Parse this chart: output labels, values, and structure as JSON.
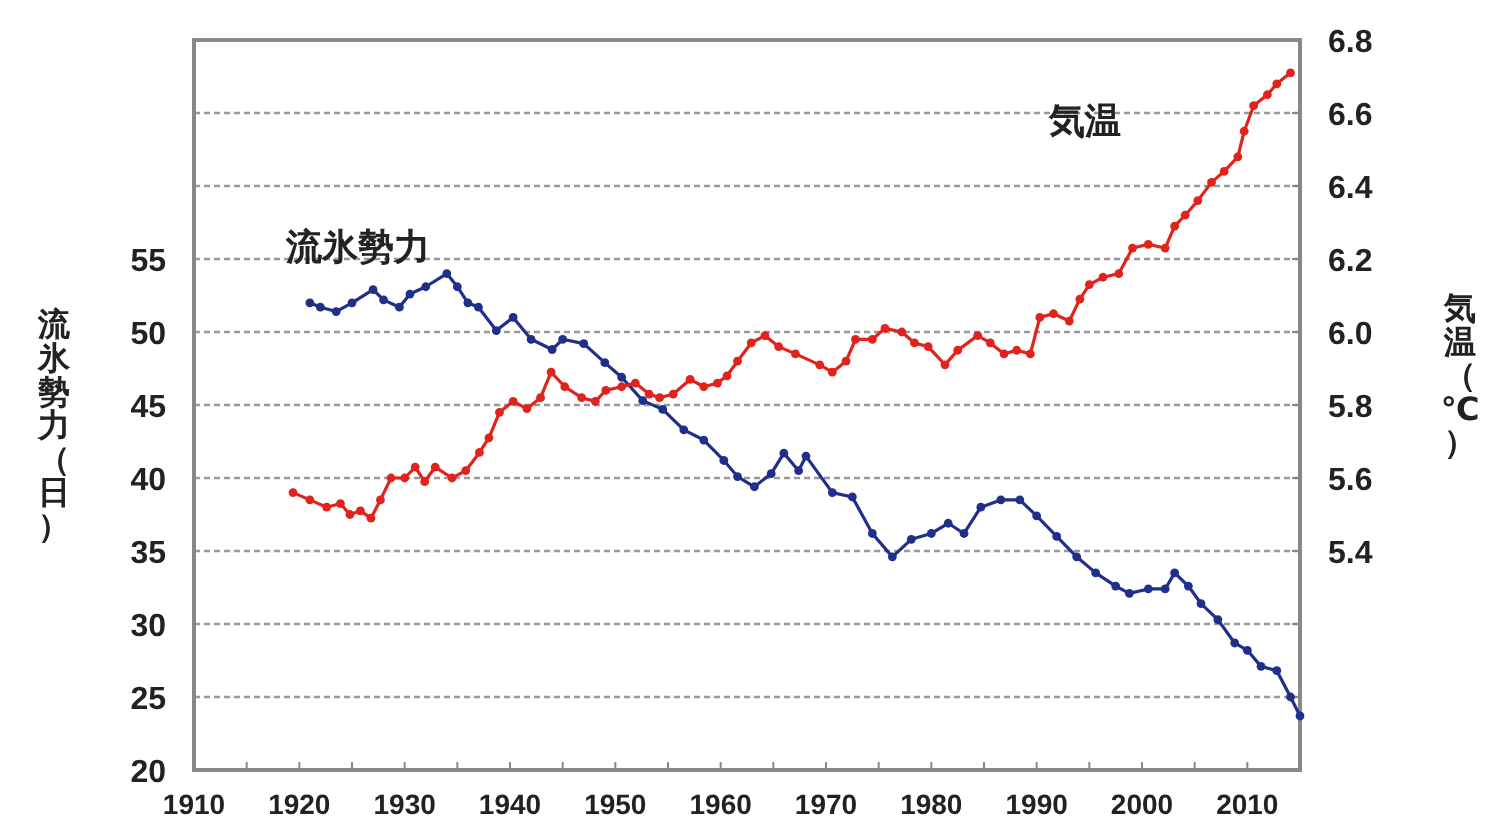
{
  "chart_data": {
    "type": "line",
    "ylabel": "流氷勢力（日）",
    "y2label": "気温（℃）",
    "xlim": [
      1910,
      2015
    ],
    "xticks": [
      1910,
      {
        "value": 1915,
        "label": null
      },
      1920,
      {
        "value": 1925,
        "label": null
      },
      1930,
      {
        "value": 1935,
        "label": null
      },
      1940,
      {
        "value": 1945,
        "label": null
      },
      1950,
      {
        "value": 1955,
        "label": null
      },
      1960,
      {
        "value": 1965,
        "label": null
      },
      1970,
      {
        "value": 1975,
        "label": null
      },
      1980,
      {
        "value": 1985,
        "label": null
      },
      1990,
      {
        "value": 1995,
        "label": null
      },
      2000,
      {
        "value": 2005,
        "label": null
      },
      2010
    ],
    "ylim": [
      20,
      70
    ],
    "yticks": [
      20,
      25,
      30,
      35,
      40,
      45,
      50,
      55,
      {
        "value": 60,
        "label": null
      },
      {
        "value": 65,
        "label": null
      },
      {
        "value": 70,
        "label": null
      }
    ],
    "y2lim": [
      4.8,
      6.8
    ],
    "y2ticks": [
      {
        "value": 4.8,
        "label": null
      },
      {
        "value": 5.0,
        "label": null
      },
      {
        "value": 5.2,
        "label": null
      },
      {
        "value": 5.4,
        "label": "5.4"
      },
      {
        "value": 5.6,
        "label": "5.6"
      },
      {
        "value": 5.8,
        "label": "5.8"
      },
      {
        "value": 6.0,
        "label": "6.0"
      },
      {
        "value": 6.2,
        "label": "6.2"
      },
      {
        "value": 6.4,
        "label": "6.4"
      },
      {
        "value": 6.6,
        "label": "6.6"
      },
      {
        "value": 6.8,
        "label": "6.8"
      }
    ],
    "grid": "y",
    "marker": "circle",
    "line_style": "solid",
    "series": [
      {
        "name": "流氷勢力",
        "color": "#1f2f8a",
        "x": [
          1921,
          1922,
          1923.5,
          1925,
          1927,
          1928,
          1929.5,
          1930.5,
          1932,
          1934,
          1935,
          1936,
          1937,
          1938.7,
          1940.3,
          1942,
          1944,
          1945,
          1947,
          1949,
          1950.6,
          1952.6,
          1954.5,
          1956.5,
          1958.4,
          1960.3,
          1961.6,
          1963.2,
          1964.8,
          1966,
          1967.4,
          1968.1,
          1970.6,
          1972.5,
          1974.4,
          1976.3,
          1978.1,
          1980,
          1981.6,
          1983.1,
          1984.7,
          1986.6,
          1988.4,
          1990,
          1991.9,
          1993.8,
          1995.6,
          1997.5,
          1998.8,
          2000.6,
          2002.2,
          2003.1,
          2004.4,
          2005.6,
          2007.2,
          2008.8,
          2010,
          2011.3,
          2012.8,
          2014.1,
          2015
        ],
        "values": [
          52.0,
          51.7,
          51.4,
          52.0,
          52.9,
          52.2,
          51.7,
          52.6,
          53.1,
          54.0,
          53.1,
          52.0,
          51.7,
          50.1,
          51.0,
          49.5,
          48.8,
          49.5,
          49.2,
          47.9,
          46.9,
          45.3,
          44.7,
          43.3,
          42.6,
          41.2,
          40.1,
          39.4,
          40.3,
          41.7,
          40.5,
          41.5,
          39.0,
          38.7,
          36.2,
          34.6,
          35.8,
          36.2,
          36.9,
          36.2,
          38.0,
          38.5,
          38.5,
          37.4,
          36.0,
          34.6,
          33.5,
          32.6,
          32.1,
          32.4,
          32.4,
          33.5,
          32.6,
          31.4,
          30.3,
          28.7,
          28.2,
          27.1,
          26.8,
          25.0,
          23.7
        ]
      },
      {
        "name": "気温",
        "color": "#e0231c",
        "axis": "y2",
        "x": [
          1919.4,
          1921,
          1922.6,
          1923.9,
          1924.8,
          1925.8,
          1926.8,
          1927.7,
          1928.7,
          1930,
          1931,
          1931.9,
          1932.9,
          1934.5,
          1935.8,
          1937.1,
          1938,
          1939,
          1940.3,
          1941.6,
          1942.9,
          1943.9,
          1945.2,
          1946.8,
          1948.1,
          1949.1,
          1950.6,
          1951.9,
          1953.2,
          1954.2,
          1955.5,
          1957.1,
          1958.4,
          1959.7,
          1960.6,
          1961.6,
          1962.9,
          1964.2,
          1965.5,
          1967.1,
          1969.4,
          1970.6,
          1971.9,
          1972.8,
          1974.4,
          1975.6,
          1977.2,
          1978.4,
          1979.7,
          1981.3,
          1982.5,
          1984.4,
          1985.6,
          1986.9,
          1988.1,
          1989.4,
          1990.3,
          1991.6,
          1993.1,
          1994.1,
          1995,
          1996.3,
          1997.8,
          1999.1,
          2000.6,
          2002.2,
          2003.1,
          2004.1,
          2005.3,
          2006.6,
          2007.8,
          2009.1,
          2009.7,
          2010.6,
          2011.9,
          2012.8,
          2014.1
        ],
        "values": [
          5.56,
          5.54,
          5.52,
          5.53,
          5.5,
          5.51,
          5.49,
          5.54,
          5.6,
          5.6,
          5.63,
          5.59,
          5.63,
          5.6,
          5.62,
          5.67,
          5.71,
          5.78,
          5.81,
          5.79,
          5.82,
          5.89,
          5.85,
          5.82,
          5.81,
          5.84,
          5.85,
          5.86,
          5.83,
          5.82,
          5.83,
          5.87,
          5.85,
          5.86,
          5.88,
          5.92,
          5.97,
          5.99,
          5.96,
          5.94,
          5.91,
          5.89,
          5.92,
          5.98,
          5.98,
          6.01,
          6.0,
          5.97,
          5.96,
          5.91,
          5.95,
          5.99,
          5.97,
          5.94,
          5.95,
          5.94,
          6.04,
          6.05,
          6.03,
          6.09,
          6.13,
          6.15,
          6.16,
          6.23,
          6.24,
          6.23,
          6.29,
          6.32,
          6.36,
          6.41,
          6.44,
          6.48,
          6.55,
          6.62,
          6.65,
          6.68,
          6.71
        ]
      }
    ]
  }
}
